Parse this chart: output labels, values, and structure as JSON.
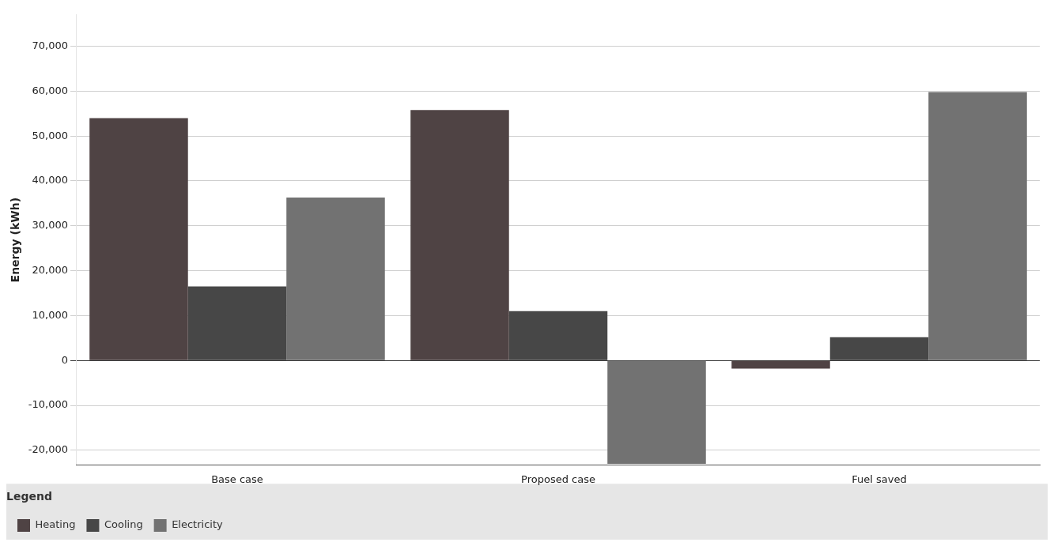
{
  "chart_data": {
    "type": "bar",
    "ylabel": "Energy (kWh)",
    "legend_title": "Legend",
    "categories": [
      "Base case",
      "Proposed case",
      "Fuel saved"
    ],
    "series": [
      {
        "name": "Heating",
        "color": "#4f4344",
        "values": [
          54000,
          55800,
          -1800
        ]
      },
      {
        "name": "Cooling",
        "color": "#474747",
        "values": [
          16500,
          11000,
          5200
        ]
      },
      {
        "name": "Electricity",
        "color": "#727272",
        "values": [
          36300,
          -23000,
          59800
        ]
      }
    ],
    "ylim": [
      -23300,
      77000
    ],
    "yticks": [
      {
        "value": -20000,
        "label": "-20,000"
      },
      {
        "value": -10000,
        "label": "-10,000"
      },
      0,
      {
        "value": 10000,
        "label": "10,000"
      },
      {
        "value": 20000,
        "label": "20,000"
      },
      {
        "value": 30000,
        "label": "30,000"
      },
      {
        "value": 40000,
        "label": "40,000"
      },
      {
        "value": 50000,
        "label": "50,000"
      },
      {
        "value": 60000,
        "label": "60,000"
      },
      {
        "value": 70000,
        "label": "70,000"
      }
    ],
    "grid": "y",
    "legend": "bottom"
  }
}
